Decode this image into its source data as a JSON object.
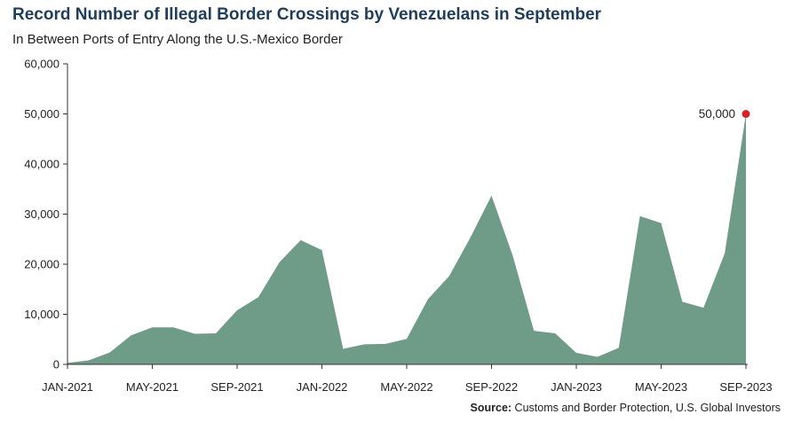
{
  "chart_data": {
    "type": "area",
    "title": "Record Number of Illegal Border Crossings by Venezuelans in September",
    "subtitle": "In Between Ports of Entry Along the U.S.-Mexico Border",
    "source_label": "Source:",
    "source_text": "Customs and Border Protection, U.S. Global Investors",
    "x": [
      "JAN-2021",
      "FEB-2021",
      "MAR-2021",
      "APR-2021",
      "MAY-2021",
      "JUN-2021",
      "JUL-2021",
      "AUG-2021",
      "SEP-2021",
      "OCT-2021",
      "NOV-2021",
      "DEC-2021",
      "JAN-2022",
      "FEB-2022",
      "MAR-2022",
      "APR-2022",
      "MAY-2022",
      "JUN-2022",
      "JUL-2022",
      "AUG-2022",
      "SEP-2022",
      "OCT-2022",
      "NOV-2022",
      "DEC-2022",
      "JAN-2023",
      "FEB-2023",
      "MAR-2023",
      "APR-2023",
      "MAY-2023",
      "JUN-2023",
      "JUL-2023",
      "AUG-2023",
      "SEP-2023"
    ],
    "x_tick_labels": [
      "JAN-2021",
      "MAY-2021",
      "SEP-2021",
      "JAN-2022",
      "MAY-2022",
      "SEP-2022",
      "JAN-2023",
      "MAY-2023",
      "SEP-2023"
    ],
    "x_tick_every": 4,
    "series": [
      {
        "values": [
          300,
          800,
          2400,
          5800,
          7400,
          7400,
          6100,
          6200,
          10800,
          13400,
          20400,
          24800,
          22800,
          3100,
          4000,
          4100,
          5100,
          13000,
          17600,
          25300,
          33700,
          21700,
          6700,
          6200,
          2300,
          1500,
          3300,
          29600,
          28200,
          12500,
          11300,
          22200,
          50000
        ],
        "color": "#6f9c88"
      }
    ],
    "ylim": [
      0,
      60000
    ],
    "y_ticks": [
      0,
      10000,
      20000,
      30000,
      40000,
      50000,
      60000
    ],
    "y_tick_labels": [
      "0",
      "10,000",
      "20,000",
      "30,000",
      "40,000",
      "50,000",
      "60,000"
    ],
    "annotation": {
      "x": "SEP-2023",
      "value": 50000,
      "label": "50,000",
      "marker_color": "#d92026"
    },
    "grid": false
  }
}
